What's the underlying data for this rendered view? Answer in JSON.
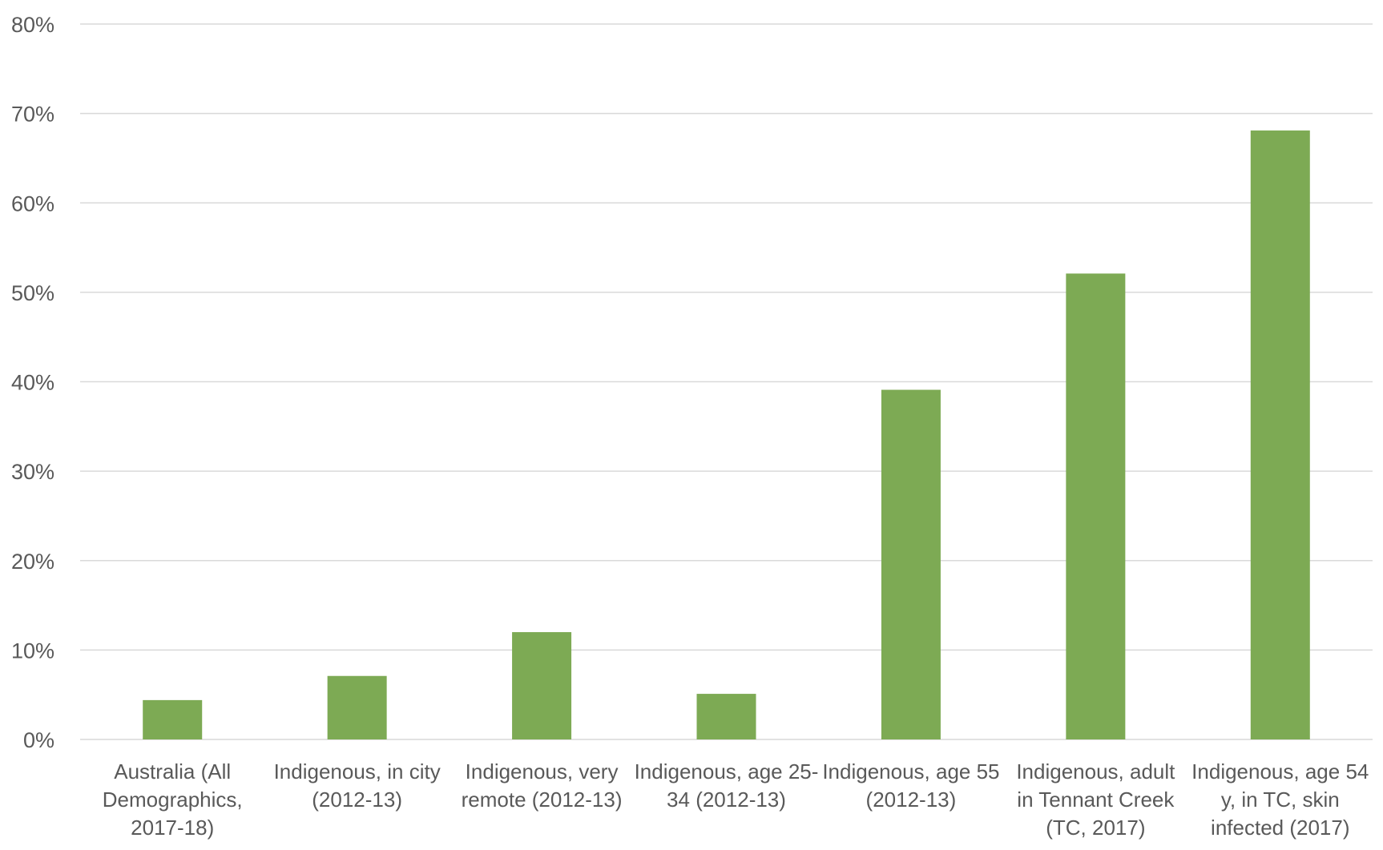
{
  "chart_data": {
    "type": "bar",
    "title": "",
    "xlabel": "",
    "ylabel": "",
    "ylim": [
      0,
      0.8
    ],
    "yticks": [
      0,
      0.1,
      0.2,
      0.3,
      0.4,
      0.5,
      0.6,
      0.7,
      0.8
    ],
    "ytick_labels": [
      "0%",
      "10%",
      "20%",
      "30%",
      "40%",
      "50%",
      "60%",
      "70%",
      "80%"
    ],
    "grid": true,
    "legend": "none",
    "bar_color": "#7daa54",
    "grid_color": "#d9d9d9",
    "text_color": "#595959",
    "categories": [
      [
        "Australia (All",
        "Demographics,",
        "2017-18)"
      ],
      [
        "Indigenous, in city",
        "(2012-13)"
      ],
      [
        "Indigenous, very",
        "remote (2012-13)"
      ],
      [
        "Indigenous, age 25-",
        "34 (2012-13)"
      ],
      [
        "Indigenous, age 55",
        "(2012-13)"
      ],
      [
        "Indigenous, adult",
        "in Tennant Creek",
        "(TC, 2017)"
      ],
      [
        "Indigenous, age 54",
        "y, in TC, skin",
        "infected (2017)"
      ]
    ],
    "values": [
      0.044,
      0.071,
      0.12,
      0.051,
      0.391,
      0.521,
      0.681
    ]
  }
}
